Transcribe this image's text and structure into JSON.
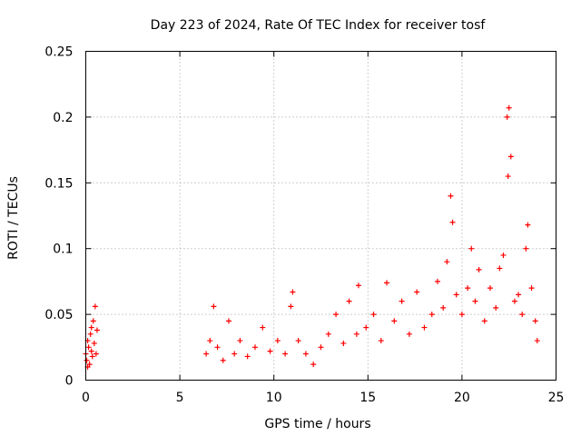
{
  "colors": {
    "marker": "#ff0000",
    "grid": "#a0a0a0",
    "frame": "#000000"
  },
  "chart_data": {
    "type": "scatter",
    "title": "Day 223 of 2024, Rate Of TEC Index for receiver tosf",
    "xlabel": "GPS time / hours",
    "ylabel": "ROTI / TECUs",
    "xlim": [
      0,
      25
    ],
    "ylim": [
      0,
      0.25
    ],
    "x_ticks": [
      0,
      5,
      10,
      15,
      20,
      25
    ],
    "x_tick_labels": [
      "0",
      "5",
      "10",
      "15",
      "20",
      "25"
    ],
    "y_ticks": [
      0,
      0.05,
      0.1,
      0.15,
      0.2,
      0.25
    ],
    "y_tick_labels": [
      "0",
      "0.05",
      "0.1",
      "0.15",
      "0.2",
      "0.25"
    ],
    "grid": true,
    "marker": "+",
    "series": [
      {
        "name": "ROTI",
        "points": [
          [
            0.0,
            0.02
          ],
          [
            0.05,
            0.015
          ],
          [
            0.1,
            0.03
          ],
          [
            0.15,
            0.025
          ],
          [
            0.2,
            0.012
          ],
          [
            0.25,
            0.035
          ],
          [
            0.3,
            0.022
          ],
          [
            0.35,
            0.018
          ],
          [
            0.4,
            0.045
          ],
          [
            0.45,
            0.028
          ],
          [
            0.5,
            0.056
          ],
          [
            0.55,
            0.02
          ],
          [
            0.6,
            0.038
          ],
          [
            0.1,
            0.01
          ],
          [
            0.3,
            0.04
          ],
          [
            6.4,
            0.02
          ],
          [
            6.6,
            0.03
          ],
          [
            6.8,
            0.056
          ],
          [
            7.0,
            0.025
          ],
          [
            7.3,
            0.015
          ],
          [
            7.6,
            0.045
          ],
          [
            7.9,
            0.02
          ],
          [
            8.2,
            0.03
          ],
          [
            8.6,
            0.018
          ],
          [
            9.0,
            0.025
          ],
          [
            9.4,
            0.04
          ],
          [
            9.8,
            0.022
          ],
          [
            10.2,
            0.03
          ],
          [
            10.6,
            0.02
          ],
          [
            10.9,
            0.056
          ],
          [
            11.0,
            0.067
          ],
          [
            11.3,
            0.03
          ],
          [
            11.7,
            0.02
          ],
          [
            12.1,
            0.012
          ],
          [
            12.5,
            0.025
          ],
          [
            12.9,
            0.035
          ],
          [
            13.3,
            0.05
          ],
          [
            13.7,
            0.028
          ],
          [
            14.0,
            0.06
          ],
          [
            14.4,
            0.035
          ],
          [
            14.5,
            0.072
          ],
          [
            14.9,
            0.04
          ],
          [
            15.3,
            0.05
          ],
          [
            15.7,
            0.03
          ],
          [
            16.0,
            0.074
          ],
          [
            16.4,
            0.045
          ],
          [
            16.8,
            0.06
          ],
          [
            17.2,
            0.035
          ],
          [
            17.6,
            0.067
          ],
          [
            18.0,
            0.04
          ],
          [
            18.4,
            0.05
          ],
          [
            18.7,
            0.075
          ],
          [
            19.0,
            0.055
          ],
          [
            19.2,
            0.09
          ],
          [
            19.4,
            0.14
          ],
          [
            19.5,
            0.12
          ],
          [
            19.7,
            0.065
          ],
          [
            20.0,
            0.05
          ],
          [
            20.3,
            0.07
          ],
          [
            20.5,
            0.1
          ],
          [
            20.7,
            0.06
          ],
          [
            20.9,
            0.084
          ],
          [
            21.2,
            0.045
          ],
          [
            21.5,
            0.07
          ],
          [
            21.8,
            0.055
          ],
          [
            22.0,
            0.085
          ],
          [
            22.2,
            0.095
          ],
          [
            22.4,
            0.2
          ],
          [
            22.45,
            0.155
          ],
          [
            22.5,
            0.207
          ],
          [
            22.6,
            0.17
          ],
          [
            22.8,
            0.06
          ],
          [
            23.0,
            0.065
          ],
          [
            23.2,
            0.05
          ],
          [
            23.4,
            0.1
          ],
          [
            23.5,
            0.118
          ],
          [
            23.7,
            0.07
          ],
          [
            23.9,
            0.045
          ],
          [
            24.0,
            0.03
          ]
        ]
      }
    ]
  }
}
